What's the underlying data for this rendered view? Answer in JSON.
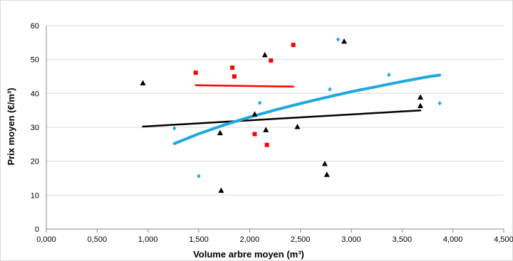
{
  "chart_data": {
    "type": "scatter",
    "title": "",
    "xlabel": "Volume arbre moyen (m³)",
    "ylabel": "Prix moyen (€/m³)",
    "xlim": [
      0,
      4.5
    ],
    "ylim": [
      0,
      60
    ],
    "x_ticks": [
      0,
      0.5,
      1,
      1.5,
      2,
      2.5,
      3,
      3.5,
      4,
      4.5
    ],
    "x_tick_labels": [
      "0,000",
      "0,500",
      "1,000",
      "1,500",
      "2,000",
      "2,500",
      "3,000",
      "3,500",
      "4,000",
      "4,500"
    ],
    "y_ticks": [
      0,
      10,
      20,
      30,
      40,
      50,
      60
    ],
    "y_tick_labels": [
      "0",
      "10",
      "20",
      "30",
      "40",
      "50",
      "60"
    ],
    "grid": "horizontal",
    "legend": "none",
    "series": [
      {
        "marker": "triangle",
        "color": "#000000",
        "points": [
          [
            0.95,
            43
          ],
          [
            1.71,
            28.3
          ],
          [
            1.72,
            11.3
          ],
          [
            2.05,
            33.8
          ],
          [
            2.15,
            51.3
          ],
          [
            2.16,
            29.2
          ],
          [
            2.47,
            30.1
          ],
          [
            2.74,
            19.2
          ],
          [
            2.76,
            16
          ],
          [
            2.93,
            55.3
          ],
          [
            3.68,
            38.8
          ],
          [
            3.68,
            36.3
          ]
        ],
        "trend": {
          "x": [
            0.95,
            3.68
          ],
          "y": [
            30.2,
            35
          ]
        }
      },
      {
        "marker": "square",
        "color": "#ff0000",
        "points": [
          [
            1.47,
            46.1
          ],
          [
            1.83,
            47.6
          ],
          [
            1.85,
            45
          ],
          [
            2.05,
            28
          ],
          [
            2.17,
            24.8
          ],
          [
            2.21,
            49.7
          ],
          [
            2.43,
            54.3
          ]
        ],
        "trend": {
          "x": [
            1.47,
            2.43
          ],
          "y": [
            42.4,
            42
          ]
        }
      },
      {
        "marker": "diamond",
        "color": "#1fa8e0",
        "points": [
          [
            1.26,
            29.7
          ],
          [
            1.5,
            15.6
          ],
          [
            2.1,
            37.2
          ],
          [
            2.79,
            41.2
          ],
          [
            2.87,
            55.9
          ],
          [
            3.37,
            45.5
          ],
          [
            3.87,
            37.1
          ]
        ],
        "trend": {
          "x": [
            1.26,
            1.5,
            1.75,
            2,
            2.25,
            2.5,
            2.75,
            3,
            3.25,
            3.5,
            3.75,
            3.87
          ],
          "y": [
            25.2,
            28.1,
            30.7,
            33,
            35.1,
            37,
            38.8,
            40.5,
            42,
            43.5,
            44.9,
            45.4
          ]
        }
      }
    ]
  }
}
